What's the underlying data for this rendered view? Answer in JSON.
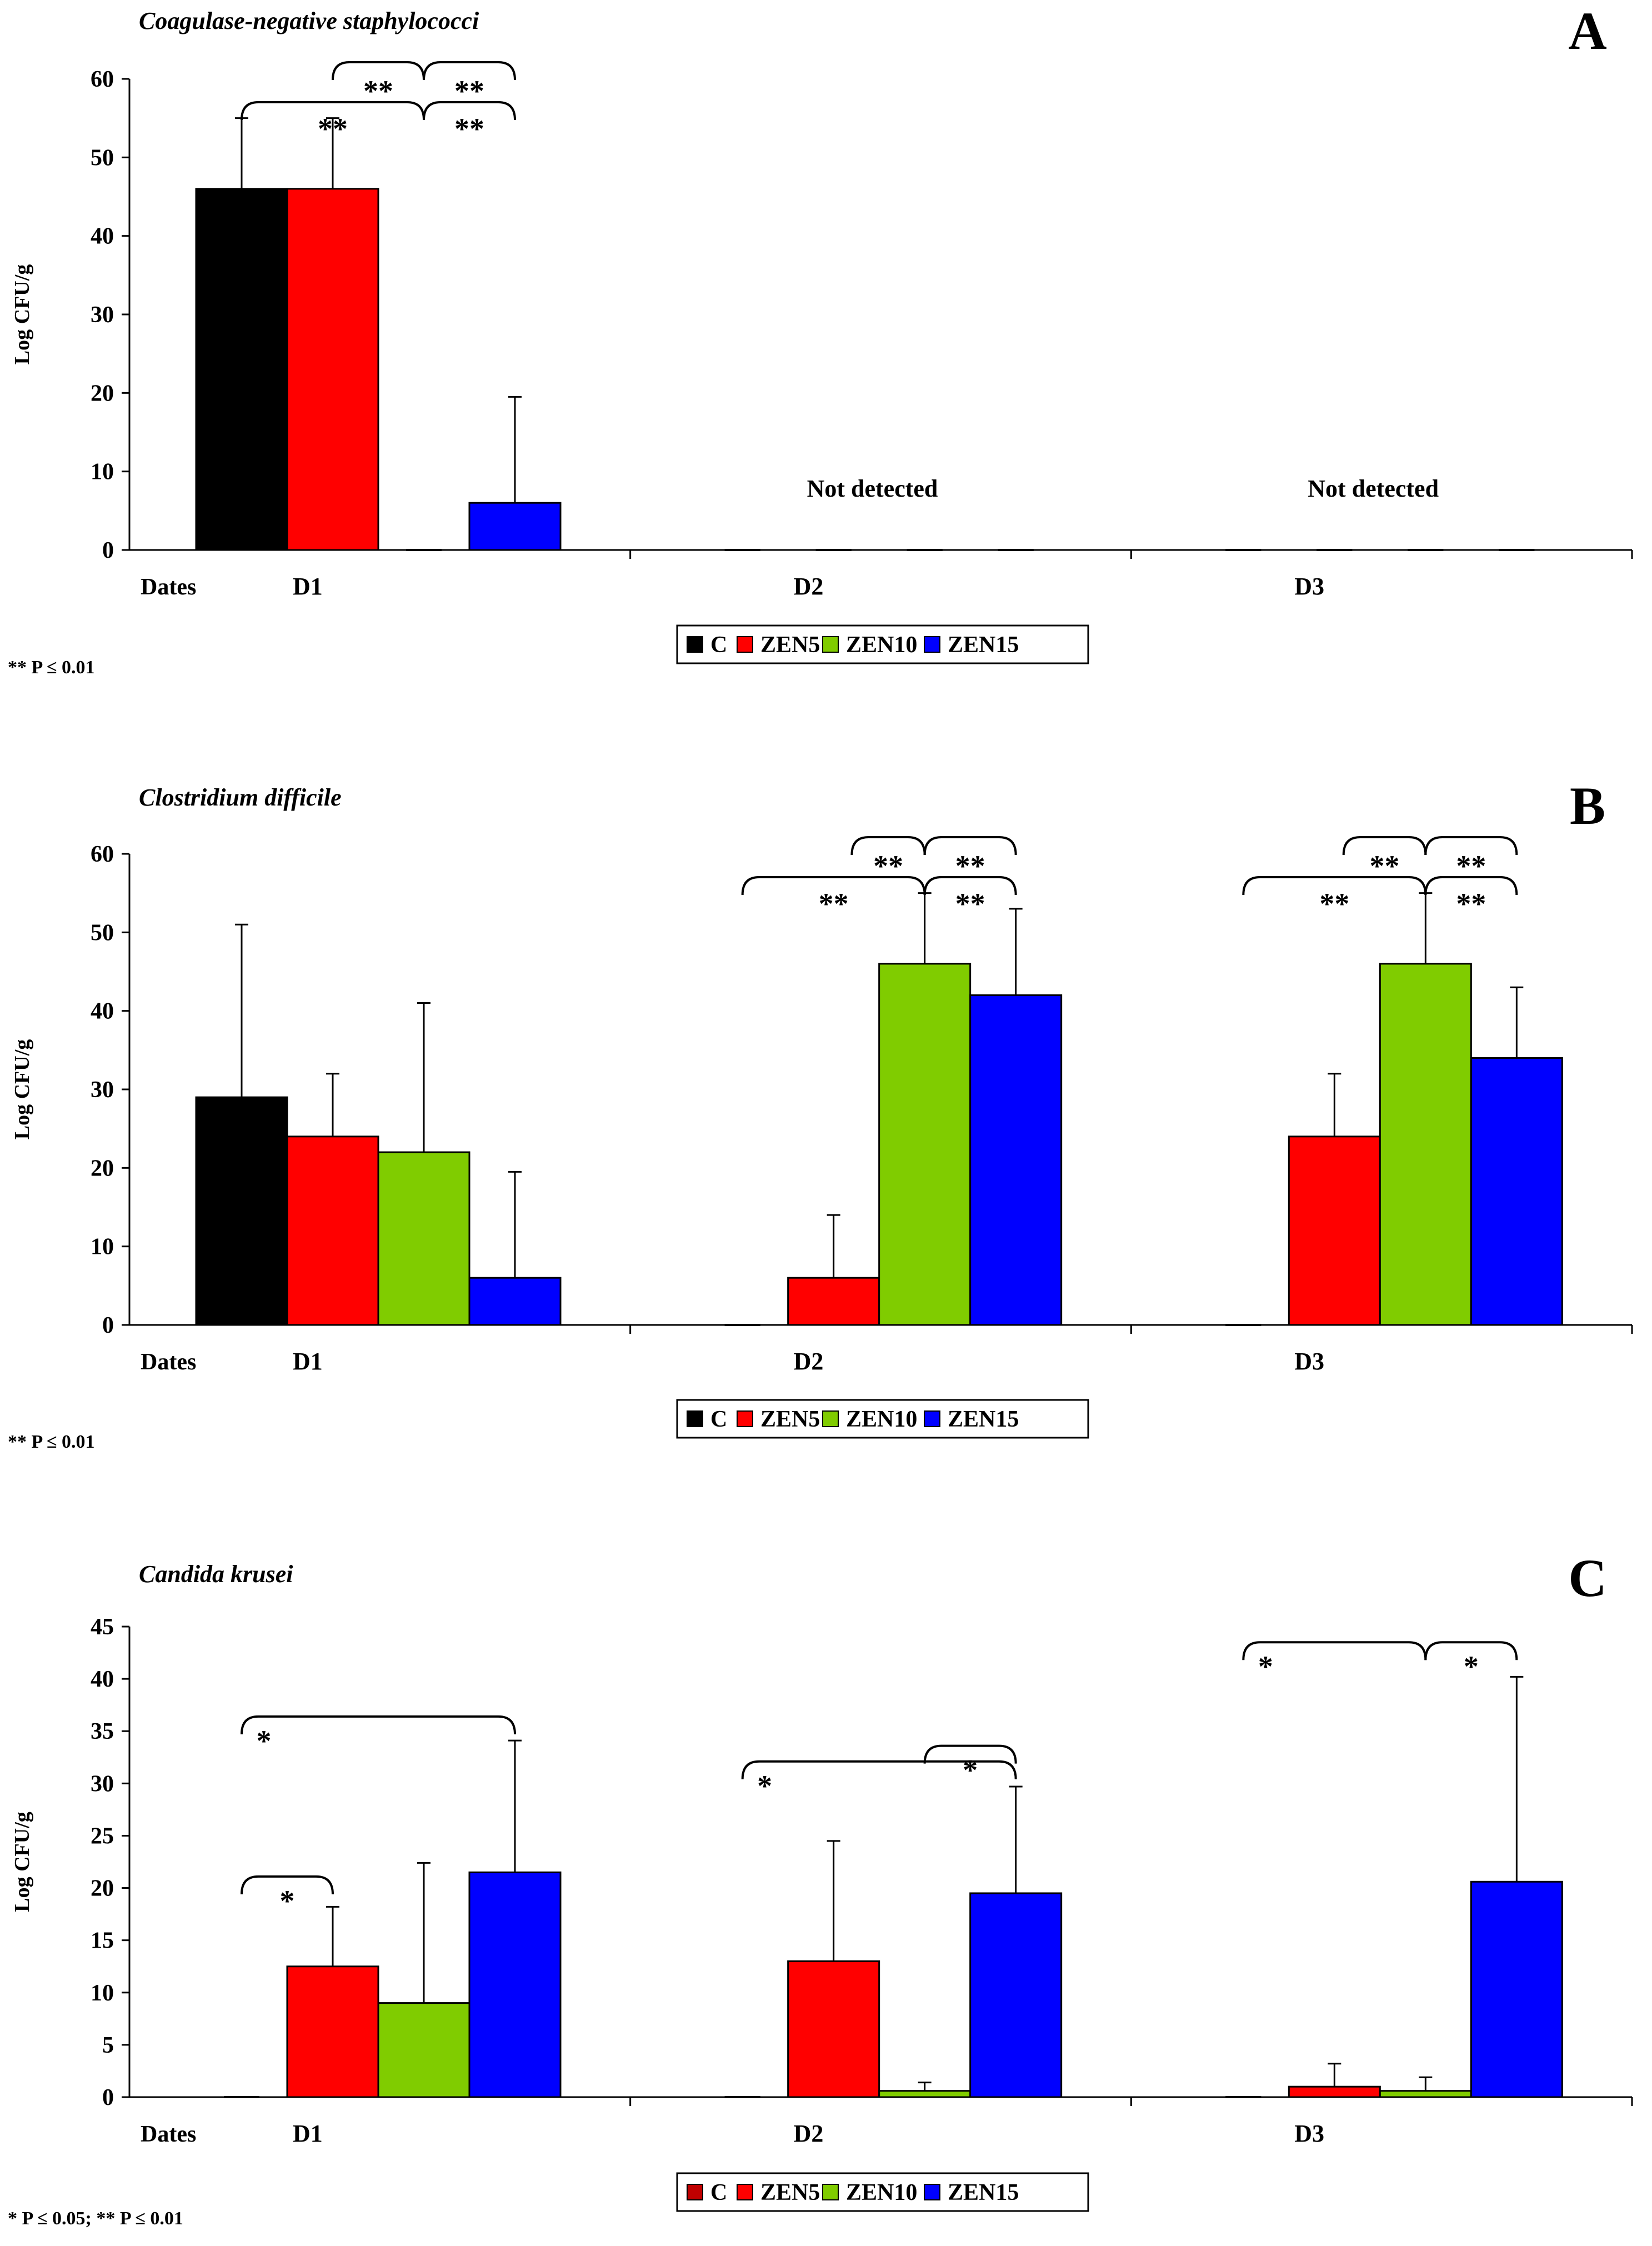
{
  "figure": {
    "dates_label": "Dates"
  },
  "chart_data": [
    {
      "panel": "A",
      "type": "bar",
      "title": "Coagulase-negative staphylococci",
      "xlabel": "",
      "ylabel": "Log CFU/g",
      "ylim": [
        0,
        60
      ],
      "yticks": [
        0,
        10,
        20,
        30,
        40,
        50,
        60
      ],
      "grid": false,
      "categories": [
        "D1",
        "D2",
        "D3"
      ],
      "series": [
        {
          "name": "C",
          "color": "#000000",
          "values": [
            46,
            0,
            0
          ],
          "errors": [
            9,
            0,
            0
          ]
        },
        {
          "name": "ZEN5",
          "color": "#ff0000",
          "values": [
            46,
            0,
            0
          ],
          "errors": [
            9,
            0,
            0
          ]
        },
        {
          "name": "ZEN10",
          "color": "#80cc00",
          "values": [
            0,
            0,
            0
          ],
          "errors": [
            0,
            0,
            0
          ]
        },
        {
          "name": "ZEN15",
          "color": "#0000ff",
          "values": [
            6,
            0,
            0
          ],
          "errors": [
            13.5,
            0,
            0
          ]
        }
      ],
      "category_notes": [
        "",
        "Not detected",
        "Not detected"
      ],
      "significance": [
        {
          "category": 0,
          "from": 1,
          "to": 2,
          "level": 0.35,
          "label": "**"
        },
        {
          "category": 0,
          "from": 2,
          "to": 3,
          "level": 0.35,
          "label": "**"
        },
        {
          "category": 0,
          "from": 0,
          "to": 2,
          "level": 0.7,
          "label": "**"
        },
        {
          "category": 0,
          "from": 2,
          "to": 3,
          "level": 0.7,
          "label": "**"
        }
      ],
      "footnote": "** P ≤ 0.01",
      "legend_position": "bottom-center"
    },
    {
      "panel": "B",
      "type": "bar",
      "title": "Clostridium difficile",
      "xlabel": "",
      "ylabel": "Log CFU/g",
      "ylim": [
        0,
        60
      ],
      "yticks": [
        0,
        10,
        20,
        30,
        40,
        50,
        60
      ],
      "grid": false,
      "categories": [
        "D1",
        "D2",
        "D3"
      ],
      "series": [
        {
          "name": "C",
          "color": "#000000",
          "values": [
            29,
            0,
            0
          ],
          "errors": [
            22,
            0,
            0
          ]
        },
        {
          "name": "ZEN5",
          "color": "#ff0000",
          "values": [
            24,
            6,
            24
          ],
          "errors": [
            8,
            8,
            8
          ]
        },
        {
          "name": "ZEN10",
          "color": "#80cc00",
          "values": [
            22,
            46,
            46
          ],
          "errors": [
            19,
            9,
            9
          ]
        },
        {
          "name": "ZEN15",
          "color": "#0000ff",
          "values": [
            6,
            42,
            34
          ],
          "errors": [
            13.5,
            11,
            9
          ]
        }
      ],
      "category_notes": [
        "",
        "",
        ""
      ],
      "significance": [
        {
          "category": 1,
          "from": 1.2,
          "to": 2,
          "level": 0.35,
          "label": "**"
        },
        {
          "category": 1,
          "from": 2,
          "to": 3,
          "level": 0.35,
          "label": "**"
        },
        {
          "category": 1,
          "from": 0,
          "to": 2,
          "level": 0.7,
          "label": "**"
        },
        {
          "category": 1,
          "from": 2,
          "to": 3,
          "level": 0.7,
          "label": "**"
        },
        {
          "category": 2,
          "from": 1.1,
          "to": 2,
          "level": 0.35,
          "label": "**"
        },
        {
          "category": 2,
          "from": 2,
          "to": 3,
          "level": 0.35,
          "label": "**"
        },
        {
          "category": 2,
          "from": 0,
          "to": 2,
          "level": 0.7,
          "label": "**"
        },
        {
          "category": 2,
          "from": 2,
          "to": 3,
          "level": 0.7,
          "label": "**"
        }
      ],
      "footnote": "** P ≤ 0.01",
      "legend_position": "bottom-center"
    },
    {
      "panel": "C",
      "type": "bar",
      "title": "Candida krusei",
      "xlabel": "",
      "ylabel": "Log CFU/g",
      "ylim": [
        0,
        45
      ],
      "yticks": [
        0,
        5,
        10,
        15,
        20,
        25,
        30,
        35,
        40,
        45
      ],
      "grid": false,
      "categories": [
        "D1",
        "D2",
        "D3"
      ],
      "series": [
        {
          "name": "C",
          "color": "#c00000",
          "values": [
            0,
            0,
            0
          ],
          "errors": [
            0,
            0,
            0
          ]
        },
        {
          "name": "ZEN5",
          "color": "#ff0000",
          "values": [
            12.5,
            13,
            1
          ],
          "errors": [
            5.7,
            11.5,
            2.2
          ]
        },
        {
          "name": "ZEN10",
          "color": "#80cc00",
          "values": [
            9,
            0.6,
            0.6
          ],
          "errors": [
            13.4,
            0.8,
            1.3
          ]
        },
        {
          "name": "ZEN15",
          "color": "#0000ff",
          "values": [
            21.5,
            19.5,
            20.6
          ],
          "errors": [
            12.6,
            10.2,
            19.6
          ]
        }
      ],
      "category_notes": [
        "",
        "",
        ""
      ],
      "significance": [
        {
          "category": 0,
          "from": 0,
          "to": 1,
          "value": 21.1,
          "label": "*"
        },
        {
          "category": 0,
          "from": 0,
          "to": 3,
          "value": 36.4,
          "label": "*"
        },
        {
          "category": 1,
          "from": 2,
          "to": 3,
          "value": 33.6,
          "label": "*"
        },
        {
          "category": 1,
          "from": 0,
          "to": 3,
          "value": 32.1,
          "label": "*"
        },
        {
          "category": 2,
          "from": 0,
          "to": 2,
          "value": 43.5,
          "label": "*"
        },
        {
          "category": 2,
          "from": 2,
          "to": 3,
          "value": 43.5,
          "label": "*"
        }
      ],
      "footnote": "* P ≤ 0.05; ** P ≤ 0.01",
      "legend_position": "bottom-center"
    }
  ]
}
